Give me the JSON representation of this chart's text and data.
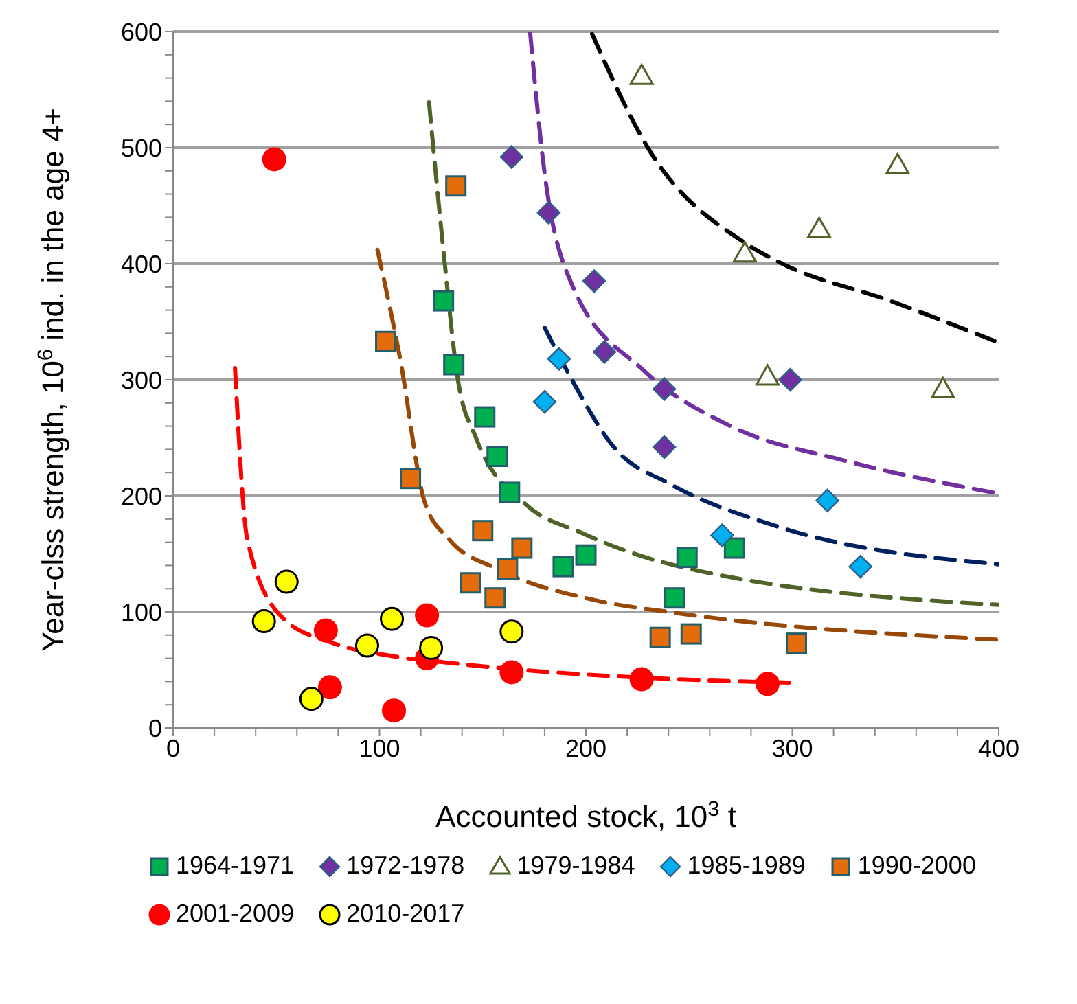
{
  "chart_data": {
    "type": "scatter",
    "xlabel": "Accounted stock, 10$^{3}$ t",
    "ylabel": "Year-clss strength, 10$^{6}$ ind. in the age 4+",
    "xlim": [
      0,
      400
    ],
    "ylim": [
      0,
      600
    ],
    "xticks": [
      0,
      {
        "value": 20,
        "label": null
      },
      {
        "value": 40,
        "label": null
      },
      {
        "value": 60,
        "label": null
      },
      {
        "value": 80,
        "label": null
      },
      100,
      {
        "value": 120,
        "label": null
      },
      {
        "value": 140,
        "label": null
      },
      {
        "value": 160,
        "label": null
      },
      {
        "value": 180,
        "label": null
      },
      200,
      {
        "value": 220,
        "label": null
      },
      {
        "value": 240,
        "label": null
      },
      {
        "value": 260,
        "label": null
      },
      {
        "value": 280,
        "label": null
      },
      300,
      {
        "value": 320,
        "label": null
      },
      {
        "value": 340,
        "label": null
      },
      {
        "value": 360,
        "label": null
      },
      {
        "value": 380,
        "label": null
      },
      400
    ],
    "yticks": [
      0,
      {
        "value": 20,
        "label": null
      },
      {
        "value": 40,
        "label": null
      },
      {
        "value": 60,
        "label": null
      },
      {
        "value": 80,
        "label": null
      },
      100,
      {
        "value": 120,
        "label": null
      },
      {
        "value": 140,
        "label": null
      },
      {
        "value": 160,
        "label": null
      },
      {
        "value": 180,
        "label": null
      },
      200,
      {
        "value": 220,
        "label": null
      },
      {
        "value": 240,
        "label": null
      },
      {
        "value": 260,
        "label": null
      },
      {
        "value": 280,
        "label": null
      },
      300,
      {
        "value": 320,
        "label": null
      },
      {
        "value": 340,
        "label": null
      },
      {
        "value": 360,
        "label": null
      },
      {
        "value": 380,
        "label": null
      },
      400,
      {
        "value": 420,
        "label": null
      },
      {
        "value": 440,
        "label": null
      },
      {
        "value": 460,
        "label": null
      },
      {
        "value": 480,
        "label": null
      },
      500,
      {
        "value": 520,
        "label": null
      },
      {
        "value": 540,
        "label": null
      },
      {
        "value": 560,
        "label": null
      },
      {
        "value": 580,
        "label": null
      },
      600
    ],
    "grid": "y",
    "legend": "bottom",
    "series": [
      {
        "name": "1964-1971",
        "color": "#00b050",
        "marker": "square",
        "x": [
          131,
          136,
          151,
          157,
          163,
          189,
          200,
          249,
          243,
          272
        ],
        "values": [
          368,
          313,
          268,
          234,
          203,
          139,
          149,
          147,
          112,
          155
        ]
      },
      {
        "name": "1972-1978",
        "color": "#7030a0",
        "marker": "diamond",
        "x": [
          164,
          182,
          204,
          209,
          238,
          238,
          299
        ],
        "values": [
          492,
          444,
          385,
          324,
          292,
          242,
          300
        ]
      },
      {
        "name": "1979-1984",
        "color": "#4f6228",
        "marker": "triangle",
        "x": [
          227,
          351,
          313,
          277,
          288,
          373
        ],
        "values": [
          562,
          485,
          430,
          409,
          303,
          292
        ]
      },
      {
        "name": "1985-1989",
        "color": "#00b0f0",
        "marker": "diamond",
        "x": [
          187,
          180,
          266,
          317,
          333
        ],
        "values": [
          318,
          281,
          166,
          196,
          139
        ]
      },
      {
        "name": "1990-2000",
        "color": "#e46c0a",
        "marker": "square",
        "x": [
          137,
          103,
          115,
          150,
          169,
          162,
          144,
          156,
          236,
          251,
          302
        ],
        "values": [
          467,
          333,
          215,
          170,
          155,
          137,
          125,
          112,
          78,
          81,
          73
        ]
      },
      {
        "name": "2001-2009",
        "color": "#ff0000",
        "marker": "circle",
        "x": [
          49,
          74,
          123,
          123,
          164,
          76,
          107,
          227,
          288
        ],
        "values": [
          490,
          84,
          97,
          60,
          48,
          35,
          15,
          42,
          38
        ]
      },
      {
        "name": "2010-2017",
        "color": "#ffff00",
        "marker": "circle",
        "x": [
          55,
          44,
          106,
          94,
          125,
          164,
          67
        ],
        "values": [
          126,
          92,
          94,
          71,
          69,
          83,
          25
        ]
      },
      {
        "type": "line",
        "color": "#ff0000",
        "line_style": "dashed",
        "marker": "none",
        "x": [
          30,
          36,
          53,
          76,
          106,
          134,
          258,
          301
        ],
        "values": [
          310,
          162,
          95,
          74,
          62,
          56,
          41,
          39
        ]
      },
      {
        "type": "line",
        "color": "#984807",
        "line_style": "dashed",
        "marker": "none",
        "x": [
          99,
          110,
          122,
          134,
          157,
          202,
          244,
          400
        ],
        "values": [
          412,
          318,
          194,
          162,
          137,
          111,
          99,
          76
        ]
      },
      {
        "type": "line",
        "color": "#4f6228",
        "line_style": "dashed",
        "marker": "none",
        "x": [
          124,
          131,
          138,
          147,
          170,
          198,
          241,
          400
        ],
        "values": [
          539,
          411,
          300,
          249,
          194,
          168,
          141,
          106
        ]
      },
      {
        "type": "line",
        "color": "#7030a0",
        "line_style": "dashed",
        "marker": "none",
        "x": [
          173,
          180,
          193,
          228,
          269,
          326,
          400
        ],
        "values": [
          599,
          478,
          383,
          308,
          261,
          230,
          202
        ]
      },
      {
        "type": "line",
        "color": "#002060",
        "line_style": "dashed",
        "marker": "none",
        "x": [
          180,
          192,
          214,
          241,
          292,
          400
        ],
        "values": [
          345,
          304,
          241,
          210,
          174,
          141
        ]
      },
      {
        "type": "line",
        "color": "#000000",
        "line_style": "dashed",
        "marker": "none",
        "x": [
          203,
          230,
          277,
          294,
          349,
          400
        ],
        "values": [
          598,
          500,
          418,
          401,
          367,
          332
        ]
      }
    ]
  }
}
